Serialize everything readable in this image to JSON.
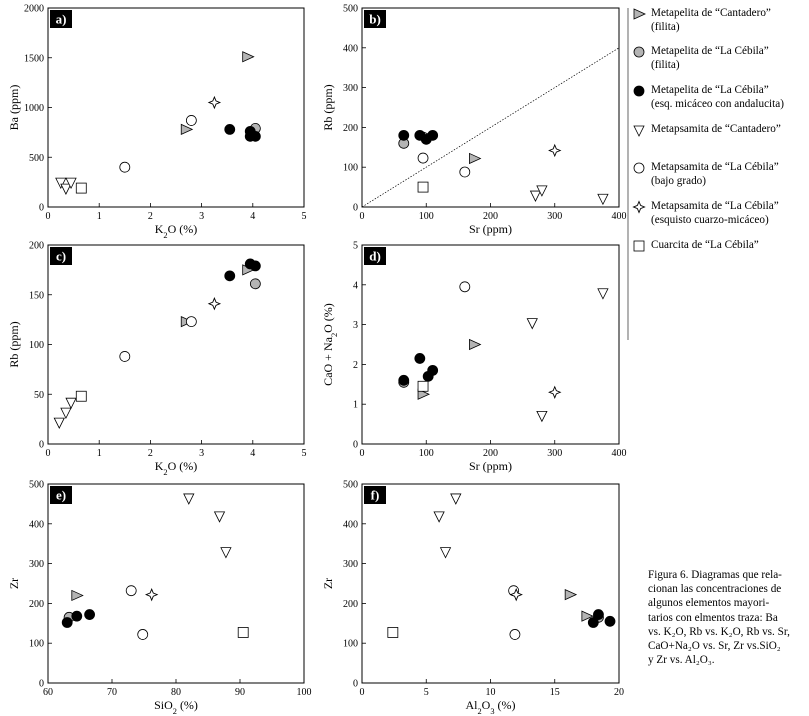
{
  "legend": [
    {
      "symbol": "tri-right",
      "line1": "Metapelita de “Cantadero”",
      "line2": "(filita)"
    },
    {
      "symbol": "circle-gray",
      "line1": "Metapelita de “La Cébila”",
      "line2": "(filita)"
    },
    {
      "symbol": "circle-black",
      "line1": "Metapelita de “La Cébila”",
      "line2": "(esq. micáceo con andalucita)"
    },
    {
      "symbol": "tri-down",
      "line1": "Metapsamita de “Cantadero”",
      "line2": ""
    },
    {
      "symbol": "circle-open",
      "line1": "Metapsamita de “La Cébila”",
      "line2": "(bajo grado)"
    },
    {
      "symbol": "diamond",
      "line1": "Metapsamita de “La Cébila”",
      "line2": "(esquisto cuarzo-micáceo)"
    },
    {
      "symbol": "square",
      "line1": "Cuarcita de “La Cébila”",
      "line2": ""
    }
  ],
  "caption": [
    "Figura 6. Diagramas que rela-",
    "cionan las concentraciones de",
    "algunos elementos mayori-",
    "tarios con elmentos traza: Ba",
    "vs. K₂O, Rb vs. K₂O, Rb vs. Sr,",
    "CaO+Na₂O vs. Sr, Zr vs.SiO₂",
    "y Zr vs. Al₂O₃."
  ],
  "chart_data": [
    {
      "panel": "a)",
      "type": "scatter",
      "xlabel": "K₂O (%)",
      "ylabel": "Ba (ppm)",
      "xlim": [
        0,
        5
      ],
      "ylim": [
        0,
        2000
      ],
      "xticks": [
        0,
        1,
        2,
        3,
        4,
        5
      ],
      "yticks": [
        0,
        500,
        1000,
        1500,
        2000
      ],
      "series": [
        {
          "name": "Metapelita de “Cantadero” (filita)",
          "symbol": "tri-right",
          "points": [
            [
              2.7,
              780
            ],
            [
              3.9,
              1510
            ]
          ]
        },
        {
          "name": "Metapelita de “La Cébila” (filita)",
          "symbol": "circle-gray",
          "points": [
            [
              4.05,
              790
            ]
          ]
        },
        {
          "name": "Metapelita de “La Cébila” (esq. micáceo con andalucita)",
          "symbol": "circle-black",
          "points": [
            [
              3.55,
              780
            ],
            [
              3.95,
              760
            ],
            [
              3.95,
              710
            ],
            [
              4.05,
              710
            ]
          ]
        },
        {
          "name": "Metapsamita de “Cantadero”",
          "symbol": "tri-down",
          "points": [
            [
              0.25,
              250
            ],
            [
              0.35,
              190
            ],
            [
              0.45,
              250
            ]
          ]
        },
        {
          "name": "Metapsamita de “La Cébila” (bajo grado)",
          "symbol": "circle-open",
          "points": [
            [
              1.5,
              400
            ],
            [
              2.8,
              870
            ]
          ]
        },
        {
          "name": "Metapsamita de “La Cébila” (esquisto cuarzo-micáceo)",
          "symbol": "diamond",
          "points": [
            [
              3.25,
              1050
            ]
          ]
        },
        {
          "name": "Cuarcita de “La Cébila”",
          "symbol": "square",
          "points": [
            [
              0.65,
              190
            ]
          ]
        }
      ]
    },
    {
      "panel": "b)",
      "type": "scatter",
      "xlabel": "Sr (ppm)",
      "ylabel": "Rb (ppm)",
      "xlim": [
        0,
        400
      ],
      "ylim": [
        0,
        500
      ],
      "xticks": [
        0,
        100,
        200,
        300,
        400
      ],
      "yticks": [
        0,
        100,
        200,
        300,
        400,
        500
      ],
      "reference_line": [
        [
          0,
          0
        ],
        [
          400,
          400
        ]
      ],
      "series": [
        {
          "name": "Metapelita de “Cantadero” (filita)",
          "symbol": "tri-right",
          "points": [
            [
              105,
              175
            ],
            [
              175,
              122
            ]
          ]
        },
        {
          "name": "Metapelita de “La Cébila” (filita)",
          "symbol": "circle-gray",
          "points": [
            [
              65,
              160
            ]
          ]
        },
        {
          "name": "Metapelita de “La Cébila” (esq. micáceo con andalucita)",
          "symbol": "circle-black",
          "points": [
            [
              65,
              180
            ],
            [
              90,
              180
            ],
            [
              100,
              170
            ],
            [
              110,
              180
            ]
          ]
        },
        {
          "name": "Metapsamita de “Cantadero”",
          "symbol": "tri-down",
          "points": [
            [
              270,
              30
            ],
            [
              280,
              43
            ],
            [
              375,
              22
            ]
          ]
        },
        {
          "name": "Metapsamita de “La Cébila” (bajo grado)",
          "symbol": "circle-open",
          "points": [
            [
              95,
              123
            ],
            [
              160,
              88
            ]
          ]
        },
        {
          "name": "Metapsamita de “La Cébila” (esquisto cuarzo-micáceo)",
          "symbol": "diamond",
          "points": [
            [
              300,
              142
            ]
          ]
        },
        {
          "name": "Cuarcita de “La Cébila”",
          "symbol": "square",
          "points": [
            [
              95,
              50
            ]
          ]
        }
      ]
    },
    {
      "panel": "c)",
      "type": "scatter",
      "xlabel": "K₂O (%)",
      "ylabel": "Rb (ppm)",
      "xlim": [
        0,
        5
      ],
      "ylim": [
        0,
        200
      ],
      "xticks": [
        0,
        1,
        2,
        3,
        4,
        5
      ],
      "yticks": [
        0,
        50,
        100,
        150,
        200
      ],
      "series": [
        {
          "name": "Metapelita de “Cantadero” (filita)",
          "symbol": "tri-right",
          "points": [
            [
              2.7,
              123
            ],
            [
              3.9,
              175
            ]
          ]
        },
        {
          "name": "Metapelita de “La Cébila” (filita)",
          "symbol": "circle-gray",
          "points": [
            [
              4.05,
              161
            ]
          ]
        },
        {
          "name": "Metapelita de “La Cébila” (esq. micáceo con andalucita)",
          "symbol": "circle-black",
          "points": [
            [
              3.55,
              169
            ],
            [
              3.95,
              181
            ],
            [
              4.05,
              179
            ]
          ]
        },
        {
          "name": "Metapsamita de “Cantadero”",
          "symbol": "tri-down",
          "points": [
            [
              0.22,
              22
            ],
            [
              0.35,
              32
            ],
            [
              0.45,
              42
            ]
          ]
        },
        {
          "name": "Metapsamita de “La Cébila” (bajo grado)",
          "symbol": "circle-open",
          "points": [
            [
              1.5,
              88
            ],
            [
              2.8,
              123
            ]
          ]
        },
        {
          "name": "Metapsamita de “La Cébila” (esquisto cuarzo-micáceo)",
          "symbol": "diamond",
          "points": [
            [
              3.25,
              141
            ]
          ]
        },
        {
          "name": "Cuarcita de “La Cébila”",
          "symbol": "square",
          "points": [
            [
              0.65,
              48
            ]
          ]
        }
      ]
    },
    {
      "panel": "d)",
      "type": "scatter",
      "xlabel": "Sr (ppm)",
      "ylabel": "CaO + Na₂O (%)",
      "xlim": [
        0,
        400
      ],
      "ylim": [
        0,
        5
      ],
      "xticks": [
        0,
        100,
        200,
        300,
        400
      ],
      "yticks": [
        0,
        1,
        2,
        3,
        4,
        5
      ],
      "series": [
        {
          "name": "Metapelita de “Cantadero” (filita)",
          "symbol": "tri-right",
          "points": [
            [
              95,
              1.25
            ],
            [
              175,
              2.5
            ]
          ]
        },
        {
          "name": "Metapelita de “La Cébila” (filita)",
          "symbol": "circle-gray",
          "points": [
            [
              65,
              1.55
            ]
          ]
        },
        {
          "name": "Metapelita de “La Cébila” (esq. micáceo con andalucita)",
          "symbol": "circle-black",
          "points": [
            [
              65,
              1.6
            ],
            [
              90,
              2.15
            ],
            [
              103,
              1.7
            ],
            [
              110,
              1.85
            ]
          ]
        },
        {
          "name": "Metapsamita de “Cantadero”",
          "symbol": "tri-down",
          "points": [
            [
              265,
              3.05
            ],
            [
              280,
              0.72
            ],
            [
              375,
              3.8
            ]
          ]
        },
        {
          "name": "Metapsamita de “La Cébila” (bajo grado)",
          "symbol": "circle-open",
          "points": [
            [
              160,
              3.95
            ]
          ]
        },
        {
          "name": "Metapsamita de “La Cébila” (esquisto cuarzo-micáceo)",
          "symbol": "diamond",
          "points": [
            [
              300,
              1.3
            ]
          ]
        },
        {
          "name": "Cuarcita de “La Cébila”",
          "symbol": "square",
          "points": [
            [
              95,
              1.45
            ]
          ]
        }
      ]
    },
    {
      "panel": "e)",
      "type": "scatter",
      "xlabel": "SiO₂ (%)",
      "ylabel": "Zr",
      "xlim": [
        60,
        100
      ],
      "ylim": [
        0,
        500
      ],
      "xticks": [
        60,
        70,
        80,
        90,
        100
      ],
      "yticks": [
        0,
        100,
        200,
        300,
        400,
        500
      ],
      "series": [
        {
          "name": "Metapelita de “Cantadero” (filita)",
          "symbol": "tri-right",
          "points": [
            [
              64.5,
              220
            ]
          ]
        },
        {
          "name": "Metapelita de “La Cébila” (filita)",
          "symbol": "circle-gray",
          "points": [
            [
              63.3,
              165
            ]
          ]
        },
        {
          "name": "Metapelita de “La Cébila” (esq. micáceo con andalucita)",
          "symbol": "circle-black",
          "points": [
            [
              63,
              152
            ],
            [
              64.5,
              168
            ],
            [
              66.5,
              172
            ]
          ]
        },
        {
          "name": "Metapsamita de “Cantadero”",
          "symbol": "tri-down",
          "points": [
            [
              82,
              465
            ],
            [
              86.8,
              420
            ],
            [
              87.8,
              330
            ]
          ]
        },
        {
          "name": "Metapsamita de “La Cébila” (bajo grado)",
          "symbol": "circle-open",
          "points": [
            [
              73,
              232
            ],
            [
              74.8,
              122
            ]
          ]
        },
        {
          "name": "Metapsamita de “La Cébila” (esquisto cuarzo-micáceo)",
          "symbol": "diamond",
          "points": [
            [
              76.2,
              222
            ]
          ]
        },
        {
          "name": "Cuarcita de “La Cébila”",
          "symbol": "square",
          "points": [
            [
              90.5,
              127
            ]
          ]
        }
      ]
    },
    {
      "panel": "f)",
      "type": "scatter",
      "xlabel": "Al₂O₃ (%)",
      "ylabel": "Zr",
      "xlim": [
        0,
        20
      ],
      "ylim": [
        0,
        500
      ],
      "xticks": [
        0,
        5,
        10,
        15,
        20
      ],
      "yticks": [
        0,
        100,
        200,
        300,
        400,
        500
      ],
      "series": [
        {
          "name": "Metapelita de “Cantadero” (filita)",
          "symbol": "tri-right",
          "points": [
            [
              16.2,
              222
            ],
            [
              17.5,
              168
            ]
          ]
        },
        {
          "name": "Metapelita de “La Cébila” (filita)",
          "symbol": "circle-gray",
          "points": [
            [
              18.4,
              165
            ]
          ]
        },
        {
          "name": "Metapelita de “La Cébila” (esq. micáceo con andalucita)",
          "symbol": "circle-black",
          "points": [
            [
              18,
              152
            ],
            [
              18.4,
              172
            ],
            [
              19.3,
              155
            ]
          ]
        },
        {
          "name": "Metapsamita de “Cantadero”",
          "symbol": "tri-down",
          "points": [
            [
              6,
              420
            ],
            [
              6.5,
              330
            ],
            [
              7.3,
              465
            ]
          ]
        },
        {
          "name": "Metapsamita de “La Cébila” (bajo grado)",
          "symbol": "circle-open",
          "points": [
            [
              11.8,
              232
            ],
            [
              11.9,
              122
            ]
          ]
        },
        {
          "name": "Metapsamita de “La Cébila” (esquisto cuarzo-micáceo)",
          "symbol": "diamond",
          "points": [
            [
              12,
              222
            ]
          ]
        },
        {
          "name": "Cuarcita de “La Cébila”",
          "symbol": "square",
          "points": [
            [
              2.4,
              127
            ]
          ]
        }
      ]
    }
  ]
}
